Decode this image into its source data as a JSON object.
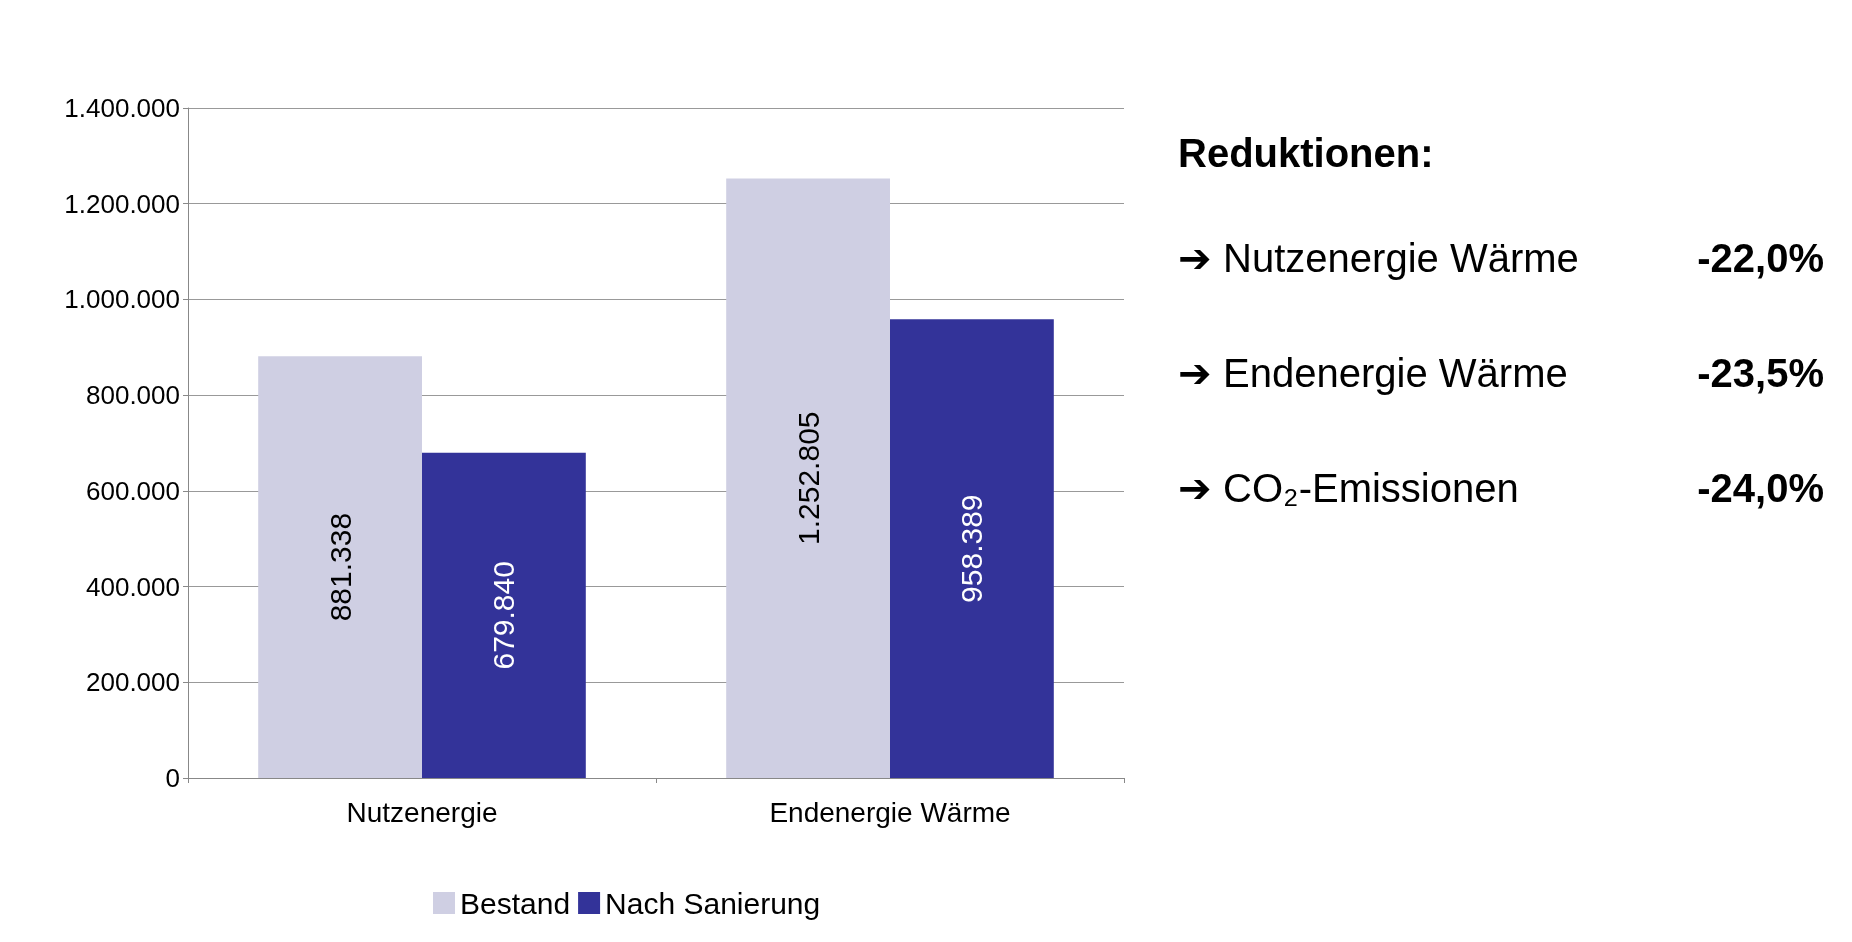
{
  "chart_data": {
    "type": "bar",
    "categories": [
      "Nutzenergie",
      "Endenergie Wärme"
    ],
    "series": [
      {
        "name": "Bestand",
        "color": "#cfcfe3",
        "values": [
          881338,
          1252805
        ],
        "value_labels": [
          "881.338",
          "1.252.805"
        ]
      },
      {
        "name": "Nach Sanierung",
        "color": "#333399",
        "values": [
          679840,
          958389
        ],
        "value_labels": [
          "679.840",
          "958.389"
        ]
      }
    ],
    "ylim": [
      0,
      1400000
    ],
    "yticks": [
      0,
      {
        "value": 200000,
        "label": "200.000"
      },
      {
        "value": 400000,
        "label": "400.000"
      },
      {
        "value": 600000,
        "label": "600.000"
      },
      {
        "value": 800000,
        "label": "800.000"
      },
      {
        "value": 1000000,
        "label": "1.000.000"
      },
      {
        "value": 1200000,
        "label": "1.200.000"
      },
      {
        "value": 1400000,
        "label": "1.400.000"
      }
    ],
    "grid": "y",
    "legend": "bottom",
    "annotations": [
      "Reduktionen:",
      "➔ Nutzenergie Wärme",
      "-22,0%",
      "➔ Endenergie Wärme",
      "-23,5%",
      "➔ CO₂-Emissionen",
      "-24,0%"
    ]
  }
}
